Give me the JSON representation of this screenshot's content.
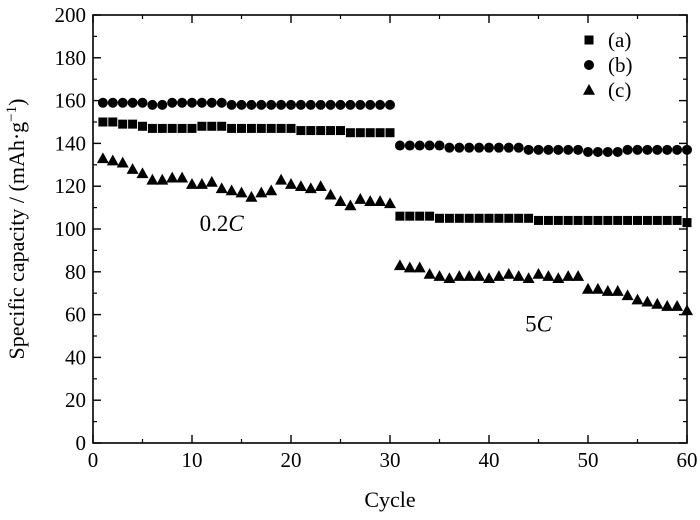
{
  "chart_data": {
    "type": "scatter",
    "title": "",
    "xlabel": "Cycle",
    "ylabel": "Specific capacity / (mAh·g",
    "ylabel_sup": "−1",
    "ylabel_close": ")",
    "xlim": [
      0,
      60
    ],
    "ylim": [
      0,
      200
    ],
    "xticks": [
      0,
      10,
      20,
      30,
      40,
      50,
      60
    ],
    "yticks": [
      0,
      20,
      40,
      60,
      80,
      100,
      120,
      140,
      160,
      180,
      200
    ],
    "grid": false,
    "legend_position": "top-right",
    "annotations": [
      {
        "text": "0.2",
        "italic_suffix": "C",
        "x": 13,
        "y": 99
      },
      {
        "text": "5",
        "italic_suffix": "C",
        "x": 45,
        "y": 52
      }
    ],
    "series": [
      {
        "name": "(a)",
        "marker": "square",
        "color": "#000000",
        "x": [
          1,
          2,
          3,
          4,
          5,
          6,
          7,
          8,
          9,
          10,
          11,
          12,
          13,
          14,
          15,
          16,
          17,
          18,
          19,
          20,
          21,
          22,
          23,
          24,
          25,
          26,
          27,
          28,
          29,
          30,
          31,
          32,
          33,
          34,
          35,
          36,
          37,
          38,
          39,
          40,
          41,
          42,
          43,
          44,
          45,
          46,
          47,
          48,
          49,
          50,
          51,
          52,
          53,
          54,
          55,
          56,
          57,
          58,
          59,
          60
        ],
        "y": [
          150,
          150,
          149,
          149,
          148,
          147,
          147,
          147,
          147,
          147,
          148,
          148,
          148,
          147,
          147,
          147,
          147,
          147,
          147,
          147,
          146,
          146,
          146,
          146,
          146,
          145,
          145,
          145,
          145,
          145,
          106,
          106,
          106,
          106,
          105,
          105,
          105,
          105,
          105,
          105,
          105,
          105,
          105,
          105,
          104,
          104,
          104,
          104,
          104,
          104,
          104,
          104,
          104,
          104,
          104,
          104,
          104,
          104,
          104,
          103
        ]
      },
      {
        "name": "(b)",
        "marker": "circle",
        "color": "#000000",
        "x": [
          1,
          2,
          3,
          4,
          5,
          6,
          7,
          8,
          9,
          10,
          11,
          12,
          13,
          14,
          15,
          16,
          17,
          18,
          19,
          20,
          21,
          22,
          23,
          24,
          25,
          26,
          27,
          28,
          29,
          30,
          31,
          32,
          33,
          34,
          35,
          36,
          37,
          38,
          39,
          40,
          41,
          42,
          43,
          44,
          45,
          46,
          47,
          48,
          49,
          50,
          51,
          52,
          53,
          54,
          55,
          56,
          57,
          58,
          59,
          60
        ],
        "y": [
          159,
          159,
          159,
          159,
          159,
          158,
          158,
          159,
          159,
          159,
          159,
          159,
          159,
          158,
          158,
          158,
          158,
          158,
          158,
          158,
          158,
          158,
          158,
          158,
          158,
          158,
          158,
          158,
          158,
          158,
          139,
          139,
          139,
          139,
          139,
          138,
          138,
          138,
          138,
          138,
          138,
          138,
          138,
          137,
          137,
          137,
          137,
          137,
          137,
          136,
          136,
          136,
          136,
          137,
          137,
          137,
          137,
          137,
          137,
          137
        ]
      },
      {
        "name": "(c)",
        "marker": "triangle",
        "color": "#000000",
        "x": [
          1,
          2,
          3,
          4,
          5,
          6,
          7,
          8,
          9,
          10,
          11,
          12,
          13,
          14,
          15,
          16,
          17,
          18,
          19,
          20,
          21,
          22,
          23,
          24,
          25,
          26,
          27,
          28,
          29,
          30,
          31,
          32,
          33,
          34,
          35,
          36,
          37,
          38,
          39,
          40,
          41,
          42,
          43,
          44,
          45,
          46,
          47,
          48,
          49,
          50,
          51,
          52,
          53,
          54,
          55,
          56,
          57,
          58,
          59,
          60
        ],
        "y": [
          133,
          132,
          131,
          128,
          126,
          123,
          123,
          124,
          124,
          121,
          121,
          122,
          119,
          118,
          117,
          115,
          117,
          118,
          123,
          121,
          120,
          119,
          120,
          116,
          113,
          111,
          114,
          113,
          113,
          112,
          83,
          82,
          82,
          79,
          78,
          77,
          78,
          78,
          78,
          77,
          78,
          79,
          78,
          77,
          79,
          78,
          77,
          78,
          78,
          72,
          72,
          71,
          71,
          69,
          67,
          66,
          65,
          64,
          64,
          62
        ]
      }
    ]
  }
}
